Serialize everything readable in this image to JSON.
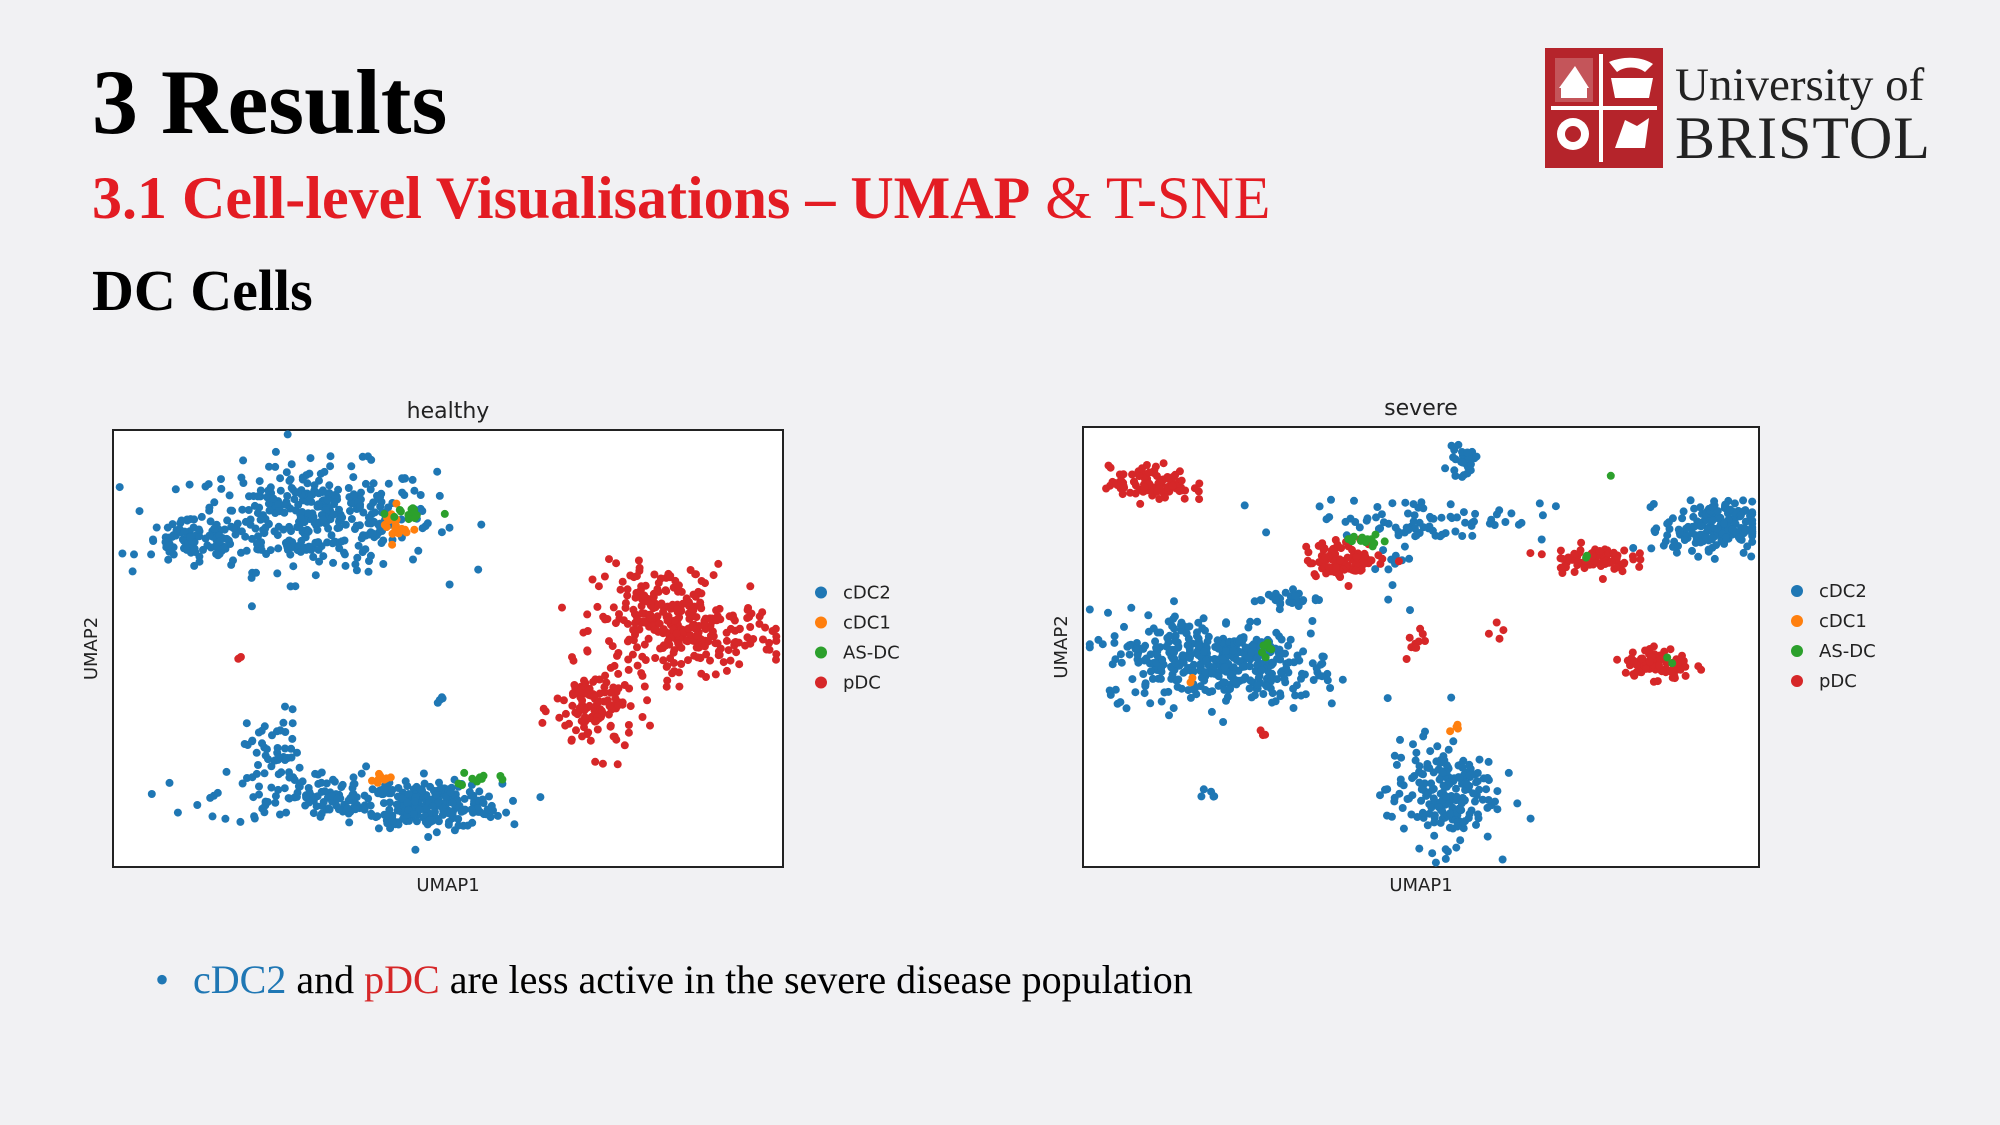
{
  "slide": {
    "title": "3 Results",
    "subtitle_bold": "3.1 Cell-level Visualisations – UMAP",
    "subtitle_rest": " & T-SNE",
    "section": "DC Cells",
    "logo": {
      "line1": "University of",
      "line2": "BRISTOL"
    },
    "bullet": {
      "marker": "•",
      "term1": "cDC2",
      "mid": " and ",
      "term2": "pDC",
      "rest": " are less active in the severe disease population"
    }
  },
  "colors": {
    "cDC2": "#1f77b4",
    "cDC1": "#ff7f0e",
    "AS-DC": "#2ca02c",
    "pDC": "#d62728",
    "accent": "#e31c23",
    "logo": "#b5242b"
  },
  "chart_data": [
    {
      "type": "scatter",
      "title": "healthy",
      "xlabel": "UMAP1",
      "ylabel": "UMAP2",
      "xlim": [
        0,
        100
      ],
      "ylim": [
        0,
        100
      ],
      "grid": false,
      "legend_position": "right",
      "legend": [
        "cDC2",
        "cDC1",
        "AS-DC",
        "pDC"
      ],
      "clusters": [
        {
          "label": "cDC2",
          "cx": 30,
          "cy": 80,
          "sx": 9,
          "sy": 6,
          "n": 380
        },
        {
          "label": "cDC2",
          "cx": 12,
          "cy": 74,
          "sx": 4,
          "sy": 2.5,
          "n": 80
        },
        {
          "label": "cDC2",
          "cx": 48,
          "cy": 14,
          "sx": 5,
          "sy": 2.5,
          "n": 200
        },
        {
          "label": "cDC2",
          "cx": 32,
          "cy": 16,
          "sx": 9,
          "sy": 3,
          "n": 150
        },
        {
          "label": "cDC2",
          "cx": 24,
          "cy": 26,
          "sx": 2,
          "sy": 5,
          "n": 50
        },
        {
          "label": "cDC2",
          "cx": 49,
          "cy": 39,
          "sx": 1,
          "sy": 1,
          "n": 4
        },
        {
          "label": "cDC1",
          "cx": 42,
          "cy": 78,
          "sx": 1,
          "sy": 2,
          "n": 20
        },
        {
          "label": "cDC1",
          "cx": 40,
          "cy": 20,
          "sx": 1,
          "sy": 1,
          "n": 8
        },
        {
          "label": "AS-DC",
          "cx": 45,
          "cy": 81,
          "sx": 2,
          "sy": 1,
          "n": 14
        },
        {
          "label": "AS-DC",
          "cx": 54,
          "cy": 20,
          "sx": 2,
          "sy": 1,
          "n": 10
        },
        {
          "label": "pDC",
          "cx": 82,
          "cy": 57,
          "sx": 5,
          "sy": 6,
          "n": 200
        },
        {
          "label": "pDC",
          "cx": 89,
          "cy": 53,
          "sx": 5,
          "sy": 4,
          "n": 130
        },
        {
          "label": "pDC",
          "cx": 72,
          "cy": 36,
          "sx": 3,
          "sy": 5,
          "n": 120
        },
        {
          "label": "pDC",
          "cx": 19,
          "cy": 48,
          "sx": 0.5,
          "sy": 0.5,
          "n": 2
        }
      ]
    },
    {
      "type": "scatter",
      "title": "severe",
      "xlabel": "UMAP1",
      "ylabel": "UMAP2",
      "xlim": [
        0,
        100
      ],
      "ylim": [
        0,
        100
      ],
      "grid": false,
      "legend_position": "right",
      "legend": [
        "cDC2",
        "cDC1",
        "AS-DC",
        "pDC"
      ],
      "clusters": [
        {
          "label": "pDC",
          "cx": 10,
          "cy": 87,
          "sx": 3,
          "sy": 2,
          "n": 100
        },
        {
          "label": "cDC2",
          "cx": 56,
          "cy": 92,
          "sx": 1,
          "sy": 1.5,
          "n": 25
        },
        {
          "label": "cDC2",
          "cx": 51,
          "cy": 79,
          "sx": 9,
          "sy": 2.5,
          "n": 80
        },
        {
          "label": "cDC2",
          "cx": 93,
          "cy": 77,
          "sx": 3.5,
          "sy": 3,
          "n": 180
        },
        {
          "label": "cDC2",
          "cx": 30,
          "cy": 61,
          "sx": 2.5,
          "sy": 1,
          "n": 30
        },
        {
          "label": "cDC2",
          "cx": 17,
          "cy": 48,
          "sx": 7,
          "sy": 5,
          "n": 280
        },
        {
          "label": "cDC2",
          "cx": 26,
          "cy": 45,
          "sx": 5,
          "sy": 4,
          "n": 130
        },
        {
          "label": "cDC2",
          "cx": 53,
          "cy": 17,
          "sx": 4,
          "sy": 6,
          "n": 200
        },
        {
          "label": "cDC2",
          "cx": 18,
          "cy": 17,
          "sx": 1,
          "sy": 1,
          "n": 5
        },
        {
          "label": "cDC2",
          "cx": 46,
          "cy": 65,
          "sx": 1.5,
          "sy": 4,
          "n": 12
        },
        {
          "label": "pDC",
          "cx": 39,
          "cy": 70,
          "sx": 3,
          "sy": 2,
          "n": 100
        },
        {
          "label": "pDC",
          "cx": 75,
          "cy": 70,
          "sx": 3,
          "sy": 1.5,
          "n": 80
        },
        {
          "label": "pDC",
          "cx": 85,
          "cy": 46,
          "sx": 2.5,
          "sy": 2,
          "n": 80
        },
        {
          "label": "pDC",
          "cx": 49,
          "cy": 52,
          "sx": 1,
          "sy": 2,
          "n": 10
        },
        {
          "label": "pDC",
          "cx": 61,
          "cy": 55,
          "sx": 1,
          "sy": 1,
          "n": 4
        },
        {
          "label": "pDC",
          "cx": 27,
          "cy": 30,
          "sx": 0.5,
          "sy": 0.5,
          "n": 3
        },
        {
          "label": "cDC1",
          "cx": 55,
          "cy": 32,
          "sx": 0.5,
          "sy": 0.7,
          "n": 4
        },
        {
          "label": "cDC1",
          "cx": 16,
          "cy": 43,
          "sx": 0.6,
          "sy": 0.6,
          "n": 2
        },
        {
          "label": "AS-DC",
          "cx": 42,
          "cy": 74,
          "sx": 1.5,
          "sy": 0.8,
          "n": 12
        },
        {
          "label": "AS-DC",
          "cx": 27,
          "cy": 49,
          "sx": 0.5,
          "sy": 1,
          "n": 6
        },
        {
          "label": "AS-DC",
          "cx": 78,
          "cy": 89,
          "sx": 0.3,
          "sy": 0.3,
          "n": 1
        },
        {
          "label": "AS-DC",
          "cx": 75,
          "cy": 70,
          "sx": 0.5,
          "sy": 0.5,
          "n": 2
        },
        {
          "label": "AS-DC",
          "cx": 86,
          "cy": 47,
          "sx": 0.5,
          "sy": 0.5,
          "n": 2
        }
      ]
    }
  ]
}
